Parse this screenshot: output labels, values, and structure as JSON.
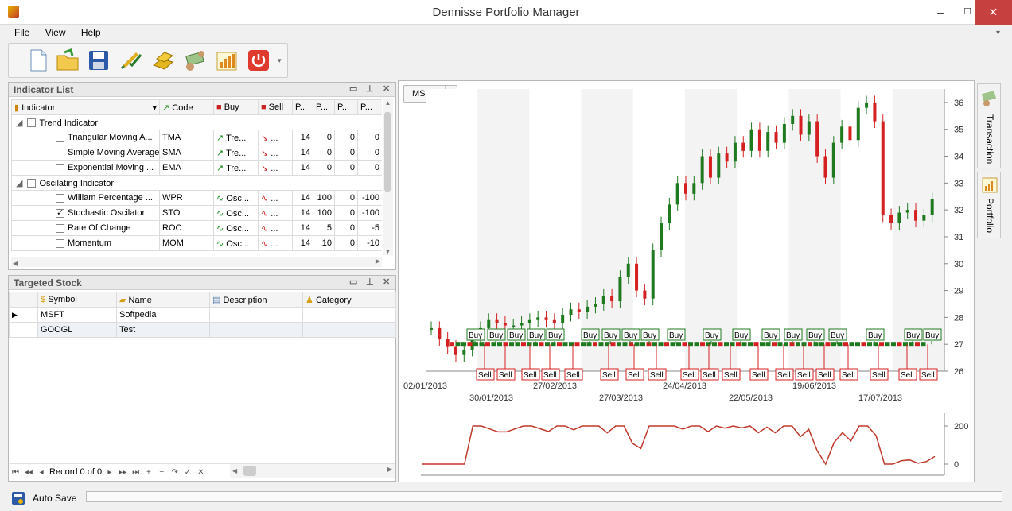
{
  "app": {
    "title": "Dennisse Portfolio Manager",
    "min": "–",
    "max": "☐",
    "close": "✕"
  },
  "menu": [
    "File",
    "View",
    "Help"
  ],
  "toolbar": {
    "buttons": [
      "new-file-icon",
      "open-folder-icon",
      "save-icon",
      "chart-pen-icon",
      "gold-bars-icon",
      "money-exchange-icon",
      "bar-chart-icon",
      "power-off-icon"
    ]
  },
  "indicator_list": {
    "title": "Indicator List",
    "columns": [
      "Indicator",
      "Code",
      "Buy",
      "Sell",
      "P...",
      "P...",
      "P...",
      "P..."
    ],
    "groups": [
      {
        "name": "Trend Indicator",
        "rows": [
          {
            "name": "Triangular Moving A...",
            "code": "TMA",
            "buy": "Tre...",
            "sell": "...",
            "p1": "14",
            "p2": "0",
            "p3": "0",
            "p4": "0",
            "checked": false
          },
          {
            "name": "Simple Moving Average",
            "code": "SMA",
            "buy": "Tre...",
            "sell": "...",
            "p1": "14",
            "p2": "0",
            "p3": "0",
            "p4": "0",
            "checked": false
          },
          {
            "name": "Exponential Moving ...",
            "code": "EMA",
            "buy": "Tre...",
            "sell": "...",
            "p1": "14",
            "p2": "0",
            "p3": "0",
            "p4": "0",
            "checked": false
          }
        ]
      },
      {
        "name": "Oscilating Indicator",
        "rows": [
          {
            "name": "William Percentage ...",
            "code": "WPR",
            "buy": "Osc...",
            "sell": "...",
            "p1": "14",
            "p2": "100",
            "p3": "0",
            "p4": "-100",
            "checked": false
          },
          {
            "name": "Stochastic Oscilator",
            "code": "STO",
            "buy": "Osc...",
            "sell": "...",
            "p1": "14",
            "p2": "100",
            "p3": "0",
            "p4": "-100",
            "checked": true
          },
          {
            "name": "Rate Of Change",
            "code": "ROC",
            "buy": "Osc...",
            "sell": "...",
            "p1": "14",
            "p2": "5",
            "p3": "0",
            "p4": "-5",
            "checked": false
          },
          {
            "name": "Momentum",
            "code": "MOM",
            "buy": "Osc...",
            "sell": "...",
            "p1": "14",
            "p2": "10",
            "p3": "0",
            "p4": "-10",
            "checked": false
          }
        ]
      }
    ]
  },
  "targeted_stock": {
    "title": "Targeted Stock",
    "columns": [
      "Symbol",
      "Name",
      "Description",
      "Category"
    ],
    "rows": [
      [
        "MSFT",
        "Softpedia",
        "",
        ""
      ],
      [
        "GOOGL",
        "Test",
        "",
        ""
      ]
    ],
    "record_text": "Record 0 of 0"
  },
  "status": {
    "auto_save": "Auto Save"
  },
  "chart": {
    "symbol": "MSFT",
    "buy_label": "Buy",
    "sell_label": "Sell"
  },
  "side_tabs": [
    "Transaction",
    "Portfolio"
  ],
  "chart_data": [
    {
      "type": "candlestick",
      "x_ticks_row1": [
        "02/01/2013",
        "27/02/2013",
        "24/04/2013",
        "19/06/2013"
      ],
      "x_ticks_row2": [
        "30/01/2013",
        "27/03/2013",
        "22/05/2013",
        "17/07/2013"
      ],
      "y_ticks": [
        "36",
        "35",
        "34",
        "33",
        "32",
        "31",
        "30",
        "29",
        "28",
        "27",
        "26"
      ],
      "ylim": [
        26,
        36.5
      ],
      "close": [
        27.6,
        27.2,
        26.9,
        26.6,
        26.8,
        27.3,
        27.6,
        27.9,
        27.8,
        27.7,
        27.7,
        27.8,
        27.9,
        28.0,
        27.9,
        27.8,
        28.1,
        28.3,
        28.2,
        28.4,
        28.5,
        28.8,
        28.6,
        29.5,
        30.0,
        29.0,
        28.7,
        30.5,
        31.5,
        32.2,
        33.0,
        32.6,
        33.0,
        34.0,
        33.2,
        34.1,
        33.8,
        34.5,
        34.2,
        35.0,
        34.2,
        34.9,
        34.5,
        35.2,
        35.5,
        34.8,
        35.3,
        34.0,
        33.2,
        34.5,
        35.1,
        34.6,
        35.8,
        36.0,
        35.3,
        31.8,
        31.5,
        31.9,
        32.0,
        31.6,
        31.8,
        32.4
      ]
    },
    {
      "type": "line",
      "y_ticks": [
        "200",
        "0"
      ],
      "ylim": [
        -50,
        250
      ]
    }
  ]
}
